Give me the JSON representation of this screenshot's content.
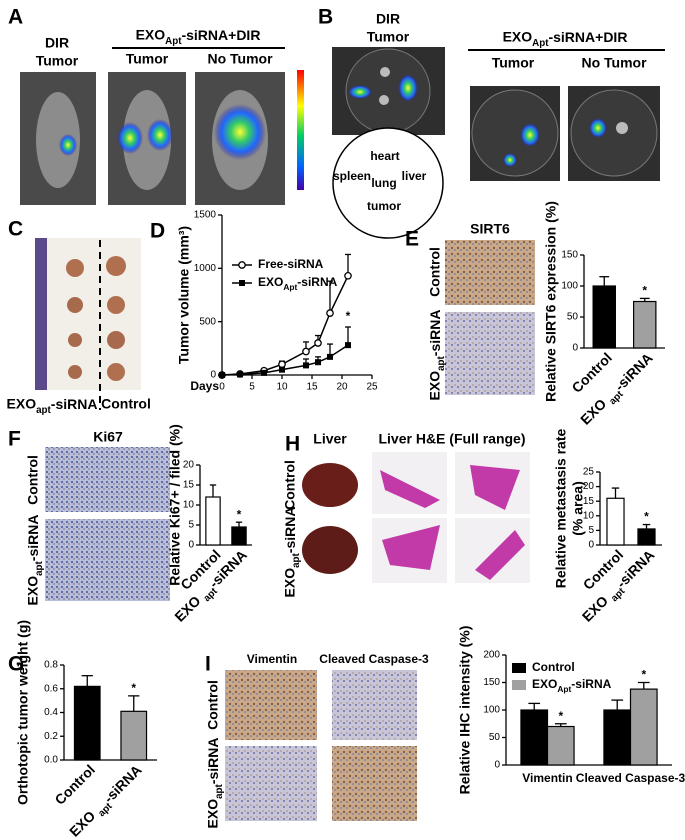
{
  "panel_labels": [
    "A",
    "B",
    "C",
    "D",
    "E",
    "F",
    "G",
    "H",
    "I"
  ],
  "panel_a": {
    "dir_label": [
      "DIR",
      "Tumor"
    ],
    "group_label": "EXOApt-siRNA+DIR",
    "columns": [
      "Tumor",
      "No Tumor"
    ]
  },
  "panel_b": {
    "dir_label": [
      "DIR",
      "Tumor"
    ],
    "organs": [
      "heart",
      "spleen",
      "lung",
      "liver",
      "tumor"
    ],
    "group_label": "EXOApt-siRNA+DIR",
    "columns": [
      "Tumor",
      "No Tumor"
    ]
  },
  "panel_c": {
    "labels": [
      "EXOapt-siRNA",
      "Control"
    ]
  },
  "panel_e": {
    "title": "SIRT6",
    "rows": [
      "Control",
      "EXOapt-siRNA"
    ]
  },
  "panel_f": {
    "title": "Ki67",
    "rows": [
      "Control",
      "EXOapt-siRNA"
    ]
  },
  "panel_h": {
    "titles": [
      "Liver",
      "Liver H&E (Full range)"
    ],
    "rows": [
      "Control",
      "EXOapt-siRNA"
    ]
  },
  "panel_i": {
    "columns": [
      "Vimentin",
      "Cleaved Caspase-3"
    ],
    "rows": [
      "Control",
      "EXOapt-siRNA"
    ]
  },
  "chart_data": [
    {
      "type": "line",
      "y_label": "Tumor volume (mm³)",
      "x_label": "Days",
      "x": [
        0,
        3,
        7,
        10,
        14,
        16,
        18,
        21
      ],
      "series": [
        {
          "name": "Free-siRNA",
          "color": "#000000",
          "marker": "circle-open",
          "values": [
            0,
            10,
            40,
            100,
            220,
            300,
            580,
            930
          ],
          "errors": [
            null,
            null,
            15,
            30,
            90,
            70,
            300,
            200
          ]
        },
        {
          "name": "EXOApt-siRNA",
          "color": "#000000",
          "marker": "square",
          "values": [
            0,
            5,
            20,
            50,
            90,
            120,
            170,
            280
          ],
          "errors": [
            null,
            null,
            10,
            20,
            60,
            50,
            120,
            170
          ]
        }
      ],
      "xlim": [
        0,
        25
      ],
      "xticks": [
        0,
        5,
        10,
        15,
        20,
        25
      ],
      "ylim": [
        0,
        1500
      ],
      "yticks": [
        0,
        500,
        1000,
        1500
      ],
      "annotations": [
        "*"
      ],
      "grid": false
    },
    {
      "type": "bar",
      "y_label": "Relative SIRT6 expression (%)",
      "categories": [
        "Control",
        "EXO apt-siRNA"
      ],
      "values": [
        100,
        75
      ],
      "errors": [
        15,
        5
      ],
      "colors": [
        "#000000",
        "#a0a0a0"
      ],
      "ylim": [
        0,
        150
      ],
      "yticks": [
        0,
        50,
        100,
        150
      ],
      "annotations": [
        "*"
      ],
      "grid": false
    },
    {
      "type": "bar",
      "y_label": "Relative Ki67+ / filed (%)",
      "categories": [
        "Control",
        "EXO apt-siRNA"
      ],
      "values": [
        12,
        4.5
      ],
      "errors": [
        3,
        1.2
      ],
      "colors": [
        "#ffffff",
        "#000000"
      ],
      "ylim": [
        0,
        20
      ],
      "yticks": [
        0,
        5,
        10,
        15,
        20
      ],
      "annotations": [
        "*"
      ],
      "grid": false
    },
    {
      "type": "bar",
      "y_label": [
        "Relative metastasis rate",
        "(% area)"
      ],
      "categories": [
        "Control",
        "EXO apt-siRNA"
      ],
      "values": [
        16,
        5.5
      ],
      "errors": [
        3.5,
        1.5
      ],
      "colors": [
        "#ffffff",
        "#000000"
      ],
      "ylim": [
        0,
        25
      ],
      "yticks": [
        0,
        5,
        10,
        15,
        20,
        25
      ],
      "annotations": [
        "*"
      ],
      "grid": false
    },
    {
      "type": "bar",
      "y_label": "Orthotopic tumor weight (g)",
      "categories": [
        "Control",
        "EXO apt-siRNA"
      ],
      "values": [
        0.62,
        0.41
      ],
      "errors": [
        0.09,
        0.13
      ],
      "colors": [
        "#000000",
        "#a0a0a0"
      ],
      "ylim": [
        0,
        0.8
      ],
      "yticks": [
        {
          "value": 0,
          "label": "0.0"
        },
        0.2,
        0.4,
        0.6,
        0.8
      ],
      "annotations": [
        "*"
      ],
      "grid": false
    },
    {
      "type": "bar",
      "y_label": "Relative IHC intensity (%)",
      "categories": [
        "Vimentin",
        "Cleaved Caspase-3"
      ],
      "series": [
        {
          "name": "Control",
          "color": "#000000",
          "values": [
            100,
            100
          ],
          "errors": [
            12,
            18
          ]
        },
        {
          "name": "EXOApt-siRNA",
          "color": "#a0a0a0",
          "values": [
            70,
            138
          ],
          "errors": [
            5,
            12
          ]
        }
      ],
      "ylim": [
        0,
        200
      ],
      "yticks": [
        0,
        50,
        100,
        150,
        200
      ],
      "annotations": [
        "*"
      ],
      "grid": false
    }
  ]
}
